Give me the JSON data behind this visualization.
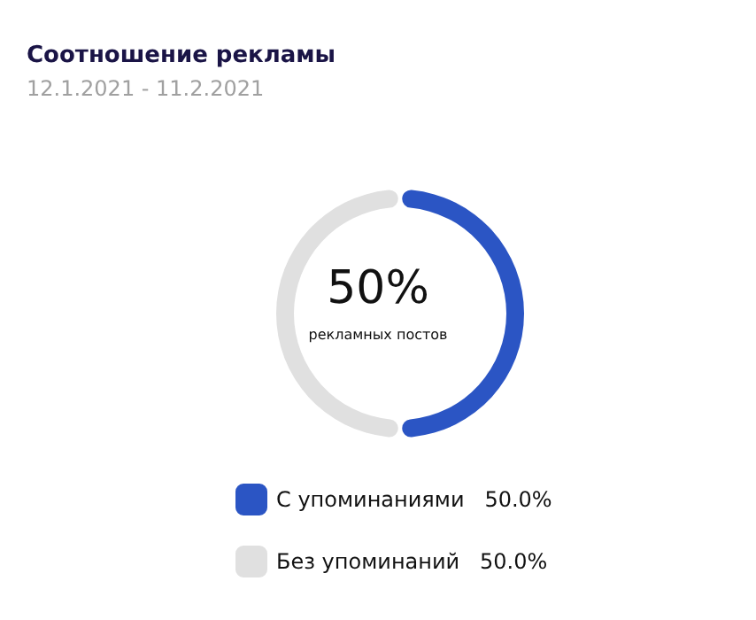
{
  "chart_data": {
    "type": "donut",
    "title": "Соотношение рекламы",
    "subtitle": "12.1.2021 - 11.2.2021",
    "categories": [
      "С упоминаниями",
      "Без упоминаний"
    ],
    "values": [
      50,
      50
    ],
    "colors": [
      "#2b55c4",
      "#e0e0e0"
    ],
    "value_labels": [
      "50.0%",
      "50.0%"
    ],
    "annotations": [
      "50%",
      "рекламных постов"
    ],
    "legend": "bottom"
  }
}
